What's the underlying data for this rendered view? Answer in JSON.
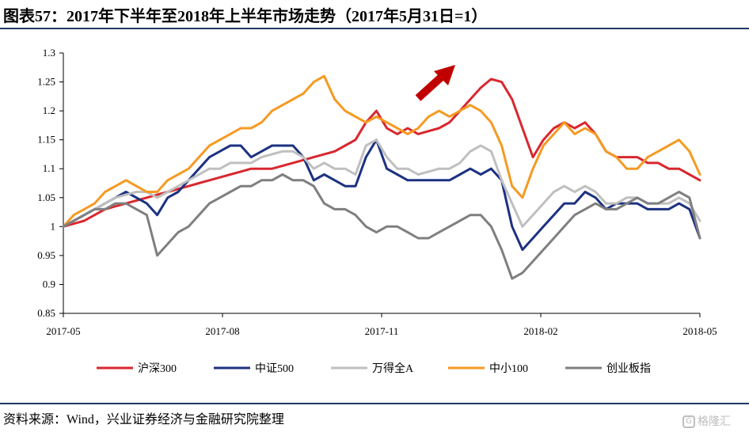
{
  "title": "图表57：2017年下半年至2018年上半年市场走势（2017年5月31日=1）",
  "source": "资料来源：Wind，兴业证券经济与金融研究院整理",
  "watermark": "格隆汇",
  "chart_data": {
    "type": "line",
    "title": "图表57：2017年下半年至2018年上半年市场走势（2017年5月31日=1）",
    "xlabel": "",
    "ylabel": "",
    "x_ticks": [
      "2017-05",
      "2017-08",
      "2017-11",
      "2018-02",
      "2018-05"
    ],
    "ylim": [
      0.85,
      1.3
    ],
    "y_ticks": [
      0.85,
      0.9,
      0.95,
      1,
      1.05,
      1.1,
      1.15,
      1.2,
      1.25,
      1.3
    ],
    "grid": false,
    "legend_position": "bottom",
    "annotation": "red upward arrow",
    "series": [
      {
        "name": "沪深300",
        "color": "#d9272e",
        "values": [
          1.0,
          1.005,
          1.01,
          1.02,
          1.03,
          1.035,
          1.04,
          1.045,
          1.05,
          1.055,
          1.06,
          1.065,
          1.07,
          1.075,
          1.08,
          1.085,
          1.09,
          1.095,
          1.1,
          1.1,
          1.1,
          1.105,
          1.11,
          1.115,
          1.12,
          1.125,
          1.13,
          1.14,
          1.15,
          1.18,
          1.2,
          1.17,
          1.16,
          1.17,
          1.16,
          1.165,
          1.17,
          1.18,
          1.2,
          1.22,
          1.24,
          1.255,
          1.25,
          1.22,
          1.17,
          1.12,
          1.15,
          1.17,
          1.18,
          1.17,
          1.18,
          1.16,
          1.13,
          1.12,
          1.12,
          1.12,
          1.11,
          1.11,
          1.1,
          1.1,
          1.09,
          1.08
        ]
      },
      {
        "name": "中证500",
        "color": "#1c3281",
        "values": [
          1.0,
          1.01,
          1.02,
          1.03,
          1.04,
          1.05,
          1.06,
          1.05,
          1.04,
          1.02,
          1.05,
          1.06,
          1.08,
          1.1,
          1.12,
          1.13,
          1.14,
          1.14,
          1.12,
          1.13,
          1.14,
          1.14,
          1.14,
          1.12,
          1.08,
          1.09,
          1.08,
          1.07,
          1.07,
          1.12,
          1.15,
          1.1,
          1.09,
          1.08,
          1.08,
          1.08,
          1.08,
          1.08,
          1.09,
          1.1,
          1.09,
          1.1,
          1.08,
          1.0,
          0.96,
          0.98,
          1.0,
          1.02,
          1.04,
          1.04,
          1.06,
          1.05,
          1.03,
          1.04,
          1.04,
          1.04,
          1.03,
          1.03,
          1.03,
          1.04,
          1.03,
          0.98
        ]
      },
      {
        "name": "万得全A",
        "color": "#bfbfbf",
        "values": [
          1.0,
          1.01,
          1.02,
          1.03,
          1.04,
          1.05,
          1.055,
          1.06,
          1.06,
          1.05,
          1.06,
          1.07,
          1.08,
          1.09,
          1.1,
          1.1,
          1.11,
          1.11,
          1.11,
          1.12,
          1.125,
          1.13,
          1.13,
          1.12,
          1.1,
          1.11,
          1.1,
          1.1,
          1.09,
          1.14,
          1.15,
          1.12,
          1.1,
          1.1,
          1.09,
          1.095,
          1.1,
          1.1,
          1.11,
          1.13,
          1.14,
          1.13,
          1.08,
          1.04,
          1.0,
          1.02,
          1.04,
          1.06,
          1.07,
          1.06,
          1.07,
          1.06,
          1.04,
          1.04,
          1.05,
          1.05,
          1.04,
          1.04,
          1.04,
          1.05,
          1.04,
          1.01
        ]
      },
      {
        "name": "中小100",
        "color": "#f59a23",
        "values": [
          1.0,
          1.02,
          1.03,
          1.04,
          1.06,
          1.07,
          1.08,
          1.07,
          1.06,
          1.06,
          1.08,
          1.09,
          1.1,
          1.12,
          1.14,
          1.15,
          1.16,
          1.17,
          1.17,
          1.18,
          1.2,
          1.21,
          1.22,
          1.23,
          1.25,
          1.26,
          1.22,
          1.2,
          1.19,
          1.18,
          1.19,
          1.18,
          1.17,
          1.16,
          1.17,
          1.19,
          1.2,
          1.19,
          1.2,
          1.21,
          1.2,
          1.18,
          1.14,
          1.07,
          1.05,
          1.1,
          1.14,
          1.16,
          1.18,
          1.16,
          1.17,
          1.16,
          1.13,
          1.12,
          1.1,
          1.1,
          1.12,
          1.13,
          1.14,
          1.15,
          1.13,
          1.09
        ]
      },
      {
        "name": "创业板指",
        "color": "#7f7f7f",
        "values": [
          1.0,
          1.01,
          1.02,
          1.03,
          1.03,
          1.04,
          1.04,
          1.03,
          1.02,
          0.95,
          0.97,
          0.99,
          1.0,
          1.02,
          1.04,
          1.05,
          1.06,
          1.07,
          1.07,
          1.08,
          1.08,
          1.09,
          1.08,
          1.08,
          1.07,
          1.04,
          1.03,
          1.03,
          1.02,
          1.0,
          0.99,
          1.0,
          1.0,
          0.99,
          0.98,
          0.98,
          0.99,
          1.0,
          1.01,
          1.02,
          1.02,
          1.0,
          0.96,
          0.91,
          0.92,
          0.94,
          0.96,
          0.98,
          1.0,
          1.02,
          1.03,
          1.04,
          1.03,
          1.03,
          1.04,
          1.05,
          1.04,
          1.04,
          1.05,
          1.06,
          1.05,
          0.98
        ]
      }
    ]
  }
}
